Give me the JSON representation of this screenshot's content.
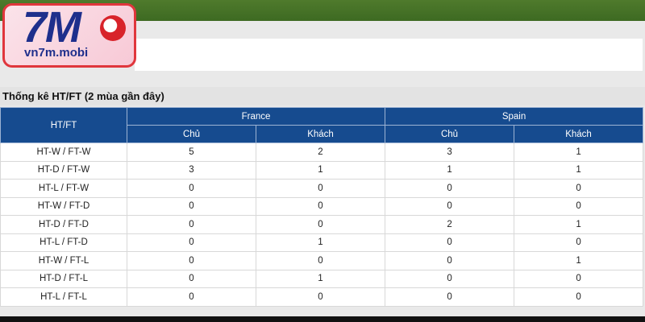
{
  "logo": {
    "brand": "7M",
    "domain": "vn7m.mobi"
  },
  "section": {
    "title": "Thống kê HT/FT (2 mùa gần đây)"
  },
  "table": {
    "corner": "HT/FT",
    "groups": [
      "France",
      "Spain"
    ],
    "subheaders": [
      "Chủ",
      "Khách",
      "Chủ",
      "Khách"
    ],
    "rows": [
      {
        "label": "HT-W / FT-W",
        "values": [
          5,
          2,
          3,
          1
        ]
      },
      {
        "label": "HT-D / FT-W",
        "values": [
          3,
          1,
          1,
          1
        ]
      },
      {
        "label": "HT-L / FT-W",
        "values": [
          0,
          0,
          0,
          0
        ]
      },
      {
        "label": "HT-W / FT-D",
        "values": [
          0,
          0,
          0,
          0
        ]
      },
      {
        "label": "HT-D / FT-D",
        "values": [
          0,
          0,
          2,
          1
        ]
      },
      {
        "label": "HT-L / FT-D",
        "values": [
          0,
          1,
          0,
          0
        ]
      },
      {
        "label": "HT-W / FT-L",
        "values": [
          0,
          0,
          0,
          1
        ]
      },
      {
        "label": "HT-D / FT-L",
        "values": [
          0,
          1,
          0,
          0
        ]
      },
      {
        "label": "HT-L / FT-L",
        "values": [
          0,
          0,
          0,
          0
        ]
      }
    ]
  }
}
